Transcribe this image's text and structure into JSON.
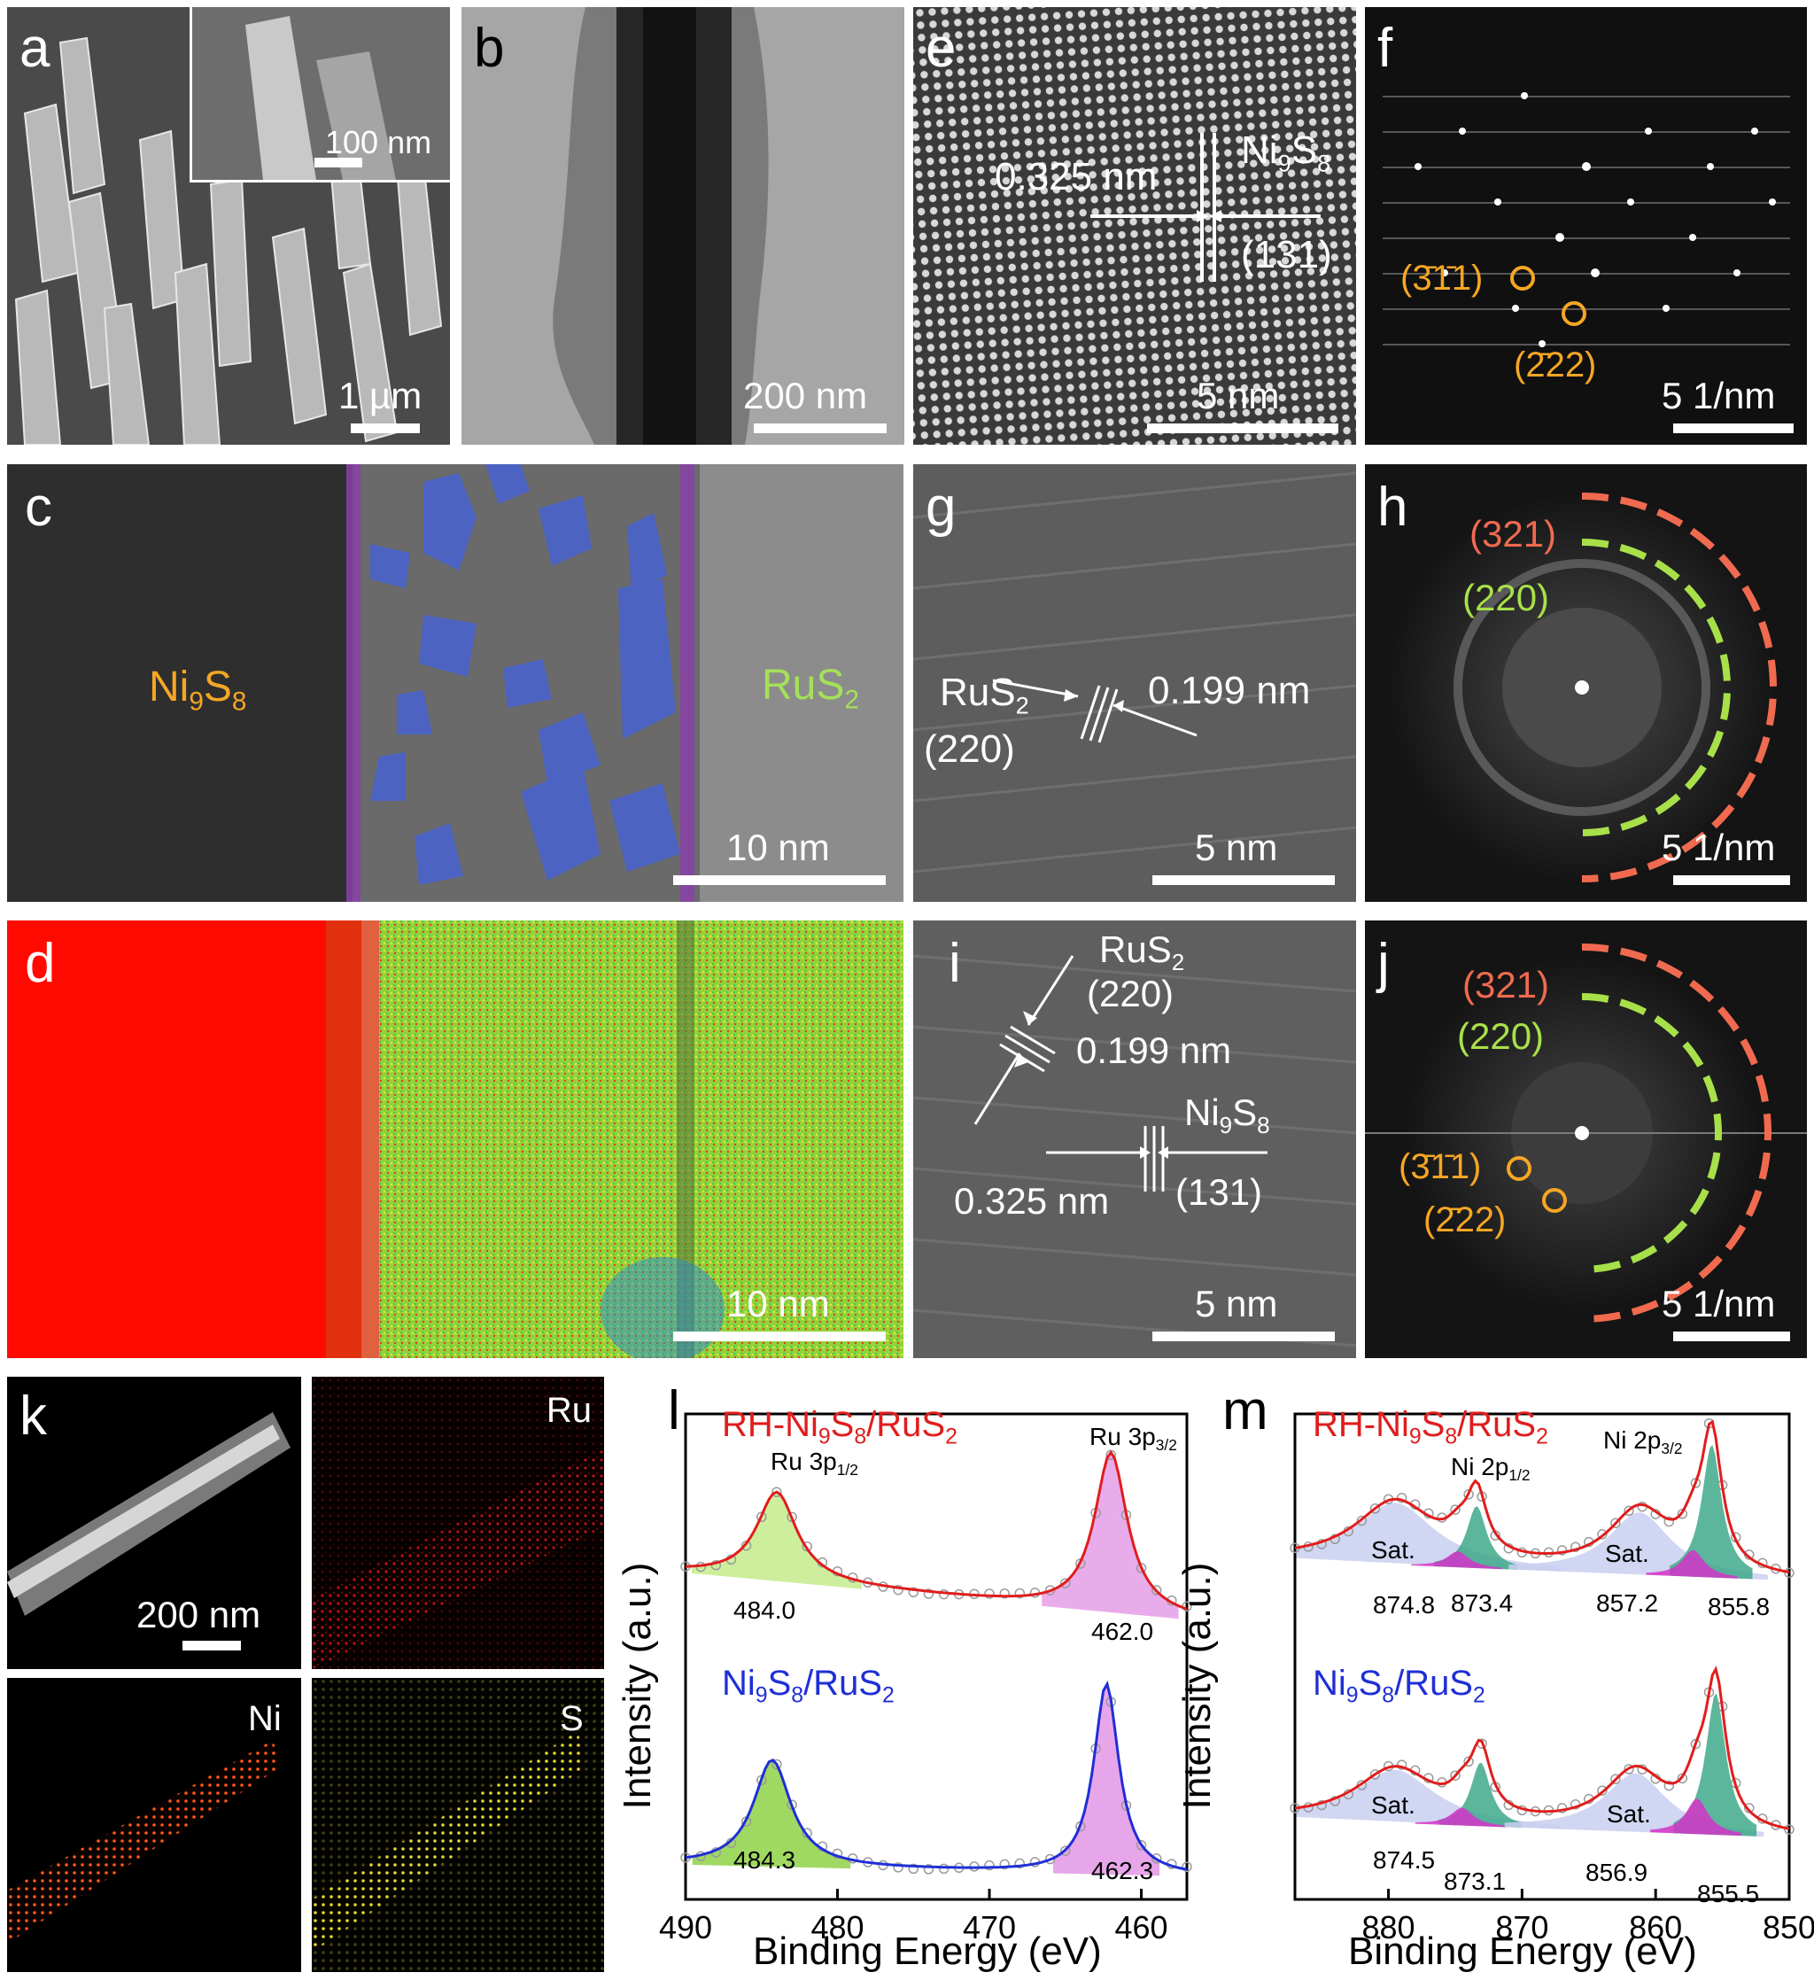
{
  "panels": {
    "a": {
      "label": "a",
      "scale": "1 µm",
      "inset_scale": "100 nm"
    },
    "b": {
      "label": "b",
      "scale": "200 nm"
    },
    "c": {
      "label": "c",
      "scale": "10 nm",
      "left_phase": "Ni₉S₈",
      "right_phase": "RuS₂"
    },
    "d": {
      "label": "d",
      "scale": "10 nm"
    },
    "e": {
      "label": "e",
      "scale": "5 nm",
      "spacing": "0.325 nm",
      "phase": "Ni₉S₈",
      "plane": "(131)"
    },
    "f": {
      "label": "f",
      "scale": "5 1/nm",
      "spot1": "(3̄1̄1)",
      "spot2": "(2̄22)"
    },
    "g": {
      "label": "g",
      "scale": "5 nm",
      "phase": "RuS₂",
      "plane": "(220)",
      "spacing": "0.199 nm"
    },
    "h": {
      "label": "h",
      "scale": "5 1/nm",
      "ring_outer": "(321)",
      "ring_inner": "(220)"
    },
    "i": {
      "label": "i",
      "scale": "5 nm",
      "phase1": "RuS₂",
      "plane1": "(220)",
      "spacing1": "0.199 nm",
      "phase2": "Ni₉S₈",
      "plane2": "(131)",
      "spacing2": "0.325 nm"
    },
    "j": {
      "label": "j",
      "scale": "5 1/nm",
      "ring_outer": "(321)",
      "ring_inner": "(220)",
      "spot1": "(3̄1̄1)",
      "spot2": "(2̄22)"
    },
    "k": {
      "label": "k",
      "scale": "200 nm",
      "maps": [
        "Ru",
        "Ni",
        "S"
      ]
    }
  },
  "colors": {
    "orange": "#f5a623",
    "green": "#a5e05a",
    "red_series": "#e11d1d",
    "blue_series": "#1f2fd6",
    "ring_red": "#f06a50",
    "ring_green": "#a8e04a"
  },
  "chart_data": [
    {
      "type": "line",
      "panel": "l",
      "xlabel": "Binding Energy (eV)",
      "ylabel": "Intensity (a.u.)",
      "xlim": [
        490,
        457
      ],
      "xticks": [
        490,
        480,
        470,
        460
      ],
      "series": [
        {
          "name": "RH-Ni9S8/RuS2",
          "peaks": [
            {
              "label": "Ru 3p1/2",
              "position": 484.0
            },
            {
              "label": "Ru 3p3/2",
              "position": 462.0
            }
          ]
        },
        {
          "name": "Ni9S8/RuS2",
          "peaks": [
            {
              "label": "",
              "position": 484.3
            },
            {
              "label": "",
              "position": 462.3
            }
          ]
        }
      ],
      "peak_labels": {
        "top_left": "Ru 3p",
        "top_left_sub": "1/2",
        "top_right": "Ru 3p",
        "top_right_sub": "3/2",
        "t1": "484.0",
        "t2": "462.0",
        "b1": "484.3",
        "b2": "462.3"
      },
      "legend": {
        "s1": "RH-Ni",
        "s1b": "9",
        "s1c": "S",
        "s1d": "8",
        "s1e": "/RuS",
        "s1f": "2",
        "s2a": "Ni",
        "s2b": "9",
        "s2c": "S",
        "s2d": "8",
        "s2e": "/RuS",
        "s2f": "2"
      }
    },
    {
      "type": "line",
      "panel": "m",
      "xlabel": "Binding Energy (eV)",
      "ylabel": "Intensity (a.u.)",
      "xlim": [
        887,
        850
      ],
      "xticks": [
        880,
        870,
        860,
        850
      ],
      "series": [
        {
          "name": "RH-Ni9S8/RuS2",
          "peaks": [
            {
              "label": "Sat.",
              "position": 874.8
            },
            {
              "label": "Ni 2p1/2",
              "position": 873.4
            },
            {
              "label": "Sat.",
              "position": 857.2
            },
            {
              "label": "Ni 2p3/2",
              "position": 855.8
            }
          ]
        },
        {
          "name": "Ni9S8/RuS2",
          "peaks": [
            {
              "label": "Sat.",
              "position": 874.5
            },
            {
              "label": "",
              "position": 873.1
            },
            {
              "label": "Sat.",
              "position": 856.9
            },
            {
              "label": "",
              "position": 855.5
            }
          ]
        }
      ],
      "peak_labels": {
        "ni12": "Ni 2p",
        "ni12_sub": "1/2",
        "ni32": "Ni 2p",
        "ni32_sub": "3/2",
        "sat": "Sat.",
        "t1": "874.8",
        "t2": "873.4",
        "t3": "857.2",
        "t4": "855.8",
        "b1": "874.5",
        "b2": "873.1",
        "b3": "856.9",
        "b4": "855.5"
      }
    }
  ]
}
